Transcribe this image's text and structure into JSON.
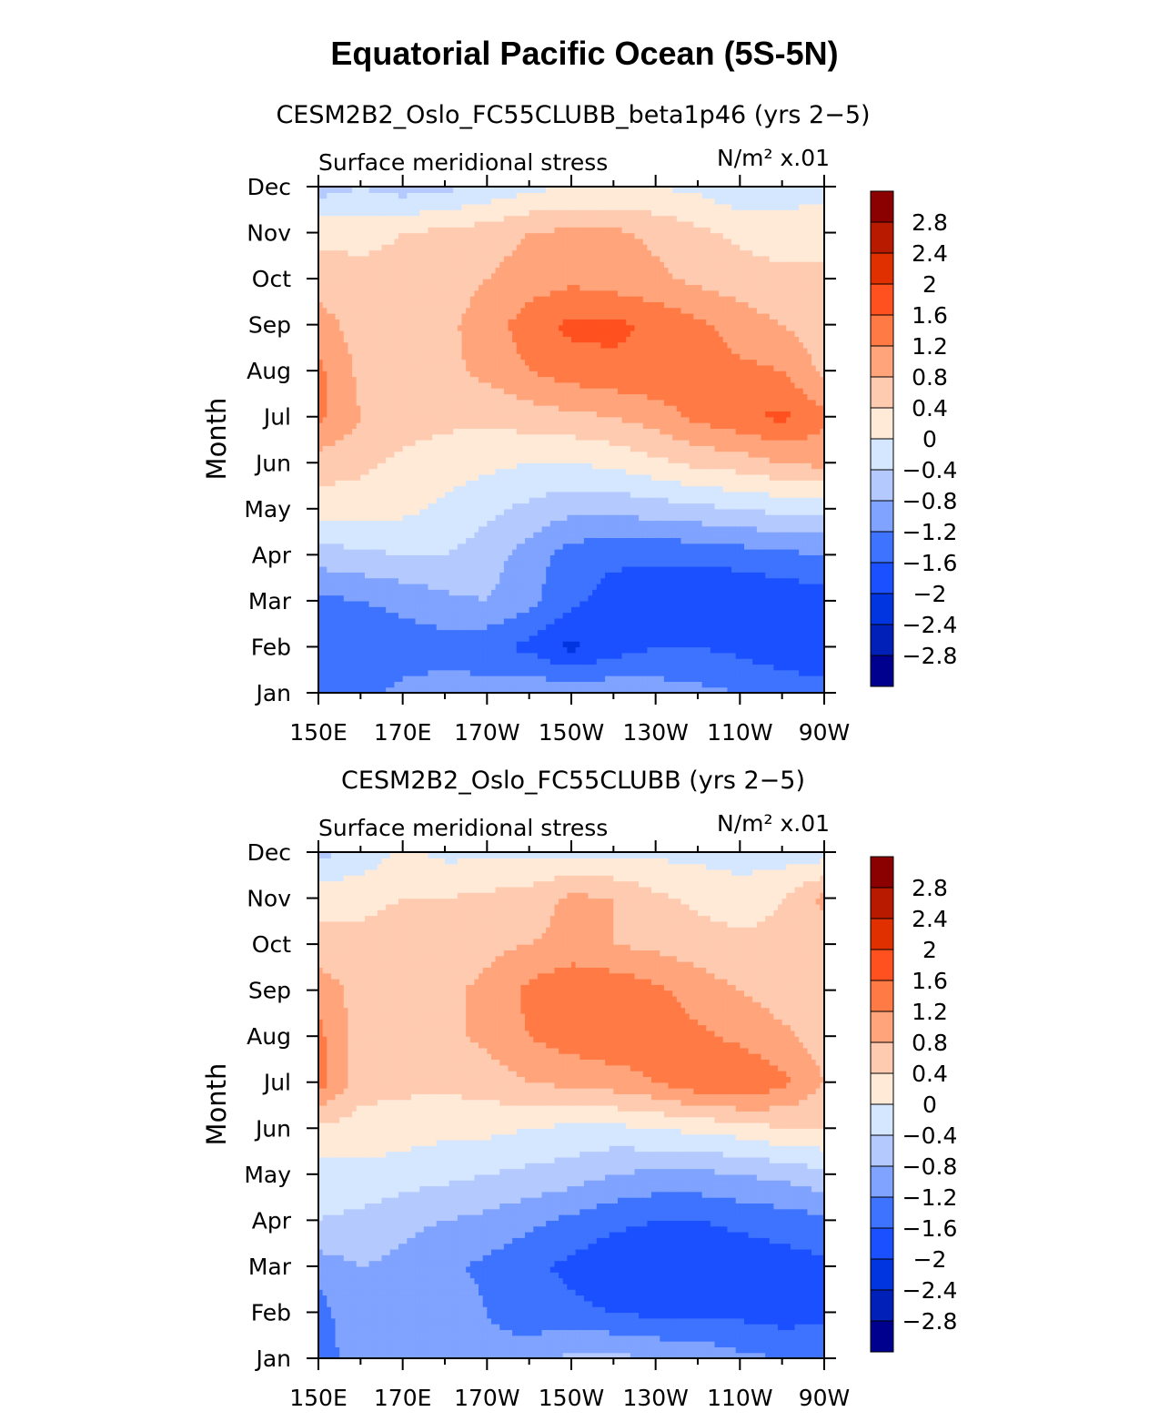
{
  "title": "Equatorial Pacific Ocean (5S-5N)",
  "chart_data": [
    {
      "type": "heatmap",
      "subtitle": "CESM2B2_Oslo_FC55CLUBB_beta1p46 (yrs 2−5)",
      "variable": "Surface meridional stress",
      "units": "N/m² x.01",
      "ylabel": "Month",
      "x": [
        150,
        160,
        170,
        180,
        190,
        200,
        210,
        220,
        230,
        240,
        250,
        260,
        270
      ],
      "x_tick_labels": [
        "150E",
        "170E",
        "170W",
        "150W",
        "130W",
        "110W",
        "90W"
      ],
      "y": [
        "Jan",
        "Feb",
        "Mar",
        "Apr",
        "May",
        "Jun",
        "Jul",
        "Aug",
        "Sep",
        "Oct",
        "Nov",
        "Dec"
      ],
      "contour_levels": [
        -2.8,
        -2.4,
        -2,
        -1.6,
        -1.2,
        -0.8,
        -0.4,
        0,
        0.4,
        0.8,
        1.2,
        1.6,
        2,
        2.4,
        2.8
      ],
      "colorbar_labels": [
        "2.8",
        "2.4",
        "2",
        "1.6",
        "1.2",
        "0.8",
        "0.4",
        "0",
        "−0.4",
        "−0.8",
        "−1.2",
        "−1.6",
        "−2",
        "−2.4",
        "−2.8"
      ],
      "values": [
        [
          -1.5,
          -1.3,
          -1.1,
          -1.0,
          -1.0,
          -0.9,
          -0.9,
          -0.9,
          -1.0,
          -1.1,
          -1.2,
          -1.3,
          -1.4
        ],
        [
          -1.6,
          -1.5,
          -1.4,
          -1.4,
          -1.5,
          -1.7,
          -2.1,
          -1.8,
          -1.6,
          -1.6,
          -1.7,
          -1.9,
          -2.0
        ],
        [
          -1.3,
          -1.2,
          -1.1,
          -0.9,
          -0.8,
          -1.1,
          -1.5,
          -1.8,
          -1.9,
          -2.0,
          -2.0,
          -1.9,
          -1.8
        ],
        [
          -0.6,
          -0.5,
          -0.4,
          -0.4,
          -0.6,
          -1.0,
          -1.4,
          -1.5,
          -1.5,
          -1.5,
          -1.4,
          -1.3,
          -1.2
        ],
        [
          0.2,
          0.2,
          0.1,
          -0.1,
          -0.3,
          -0.5,
          -0.7,
          -0.7,
          -0.6,
          -0.5,
          -0.4,
          -0.3,
          -0.3
        ],
        [
          0.6,
          0.5,
          0.3,
          0.2,
          0.1,
          0.0,
          0.0,
          0.1,
          0.3,
          0.5,
          0.6,
          0.8,
          0.9
        ],
        [
          1.3,
          0.8,
          0.6,
          0.5,
          0.5,
          0.6,
          0.7,
          0.8,
          1.0,
          1.3,
          1.5,
          1.7,
          1.3
        ],
        [
          1.3,
          0.7,
          0.6,
          0.7,
          0.9,
          1.2,
          1.4,
          1.5,
          1.5,
          1.4,
          1.3,
          1.2,
          0.7
        ],
        [
          1.0,
          0.6,
          0.6,
          0.7,
          1.0,
          1.4,
          1.7,
          1.7,
          1.5,
          1.3,
          1.0,
          0.8,
          0.6
        ],
        [
          0.6,
          0.5,
          0.5,
          0.6,
          0.8,
          1.0,
          1.1,
          1.0,
          0.9,
          0.7,
          0.6,
          0.5,
          0.5
        ],
        [
          0.3,
          0.3,
          0.4,
          0.5,
          0.6,
          0.8,
          0.9,
          0.9,
          0.7,
          0.5,
          0.3,
          0.2,
          0.2
        ],
        [
          -0.6,
          -0.4,
          -0.6,
          -0.5,
          -0.3,
          -0.1,
          0.0,
          0.0,
          0.0,
          -0.1,
          -0.3,
          -0.2,
          -0.1
        ]
      ]
    },
    {
      "type": "heatmap",
      "subtitle": "CESM2B2_Oslo_FC55CLUBB (yrs 2−5)",
      "variable": "Surface meridional stress",
      "units": "N/m² x.01",
      "ylabel": "Month",
      "x": [
        150,
        160,
        170,
        180,
        190,
        200,
        210,
        220,
        230,
        240,
        250,
        260,
        270
      ],
      "x_tick_labels": [
        "150E",
        "170E",
        "170W",
        "150W",
        "130W",
        "110W",
        "90W"
      ],
      "y": [
        "Jan",
        "Feb",
        "Mar",
        "Apr",
        "May",
        "Jun",
        "Jul",
        "Aug",
        "Sep",
        "Oct",
        "Nov",
        "Dec"
      ],
      "contour_levels": [
        -2.8,
        -2.4,
        -2,
        -1.6,
        -1.2,
        -0.8,
        -0.4,
        0,
        0.4,
        0.8,
        1.2,
        1.6,
        2,
        2.4,
        2.8
      ],
      "colorbar_labels": [
        "2.8",
        "2.4",
        "2",
        "1.6",
        "1.2",
        "0.8",
        "0.4",
        "0",
        "−0.4",
        "−0.8",
        "−1.2",
        "−1.6",
        "−2",
        "−2.4",
        "−2.8"
      ],
      "values": [
        [
          -1.5,
          -0.9,
          -0.9,
          -1.0,
          -1.1,
          -1.0,
          -0.7,
          -0.7,
          -0.8,
          -0.9,
          -1.1,
          -1.2,
          -1.3
        ],
        [
          -1.4,
          -0.8,
          -0.8,
          -0.9,
          -1.2,
          -1.4,
          -1.5,
          -1.6,
          -1.7,
          -1.7,
          -1.7,
          -1.8,
          -1.7
        ],
        [
          -1.0,
          -0.8,
          -0.9,
          -1.1,
          -1.3,
          -1.5,
          -1.7,
          -1.9,
          -2.0,
          -2.0,
          -1.9,
          -1.8,
          -1.7
        ],
        [
          -0.4,
          -0.5,
          -0.7,
          -0.8,
          -0.9,
          -1.1,
          -1.3,
          -1.5,
          -1.6,
          -1.6,
          -1.5,
          -1.4,
          -1.3
        ],
        [
          -0.2,
          -0.1,
          -0.2,
          -0.3,
          -0.4,
          -0.5,
          -0.6,
          -0.8,
          -0.9,
          -0.9,
          -0.8,
          -0.7,
          -0.5
        ],
        [
          0.3,
          0.2,
          0.2,
          0.1,
          0.1,
          0.0,
          -0.1,
          -0.1,
          0.0,
          0.1,
          0.2,
          0.4,
          0.4
        ],
        [
          1.4,
          0.6,
          0.5,
          0.5,
          0.6,
          0.8,
          0.9,
          1.0,
          1.2,
          1.5,
          1.6,
          1.3,
          0.8
        ],
        [
          1.3,
          0.6,
          0.6,
          0.7,
          0.9,
          1.2,
          1.4,
          1.5,
          1.4,
          1.3,
          1.1,
          0.9,
          0.6
        ],
        [
          1.1,
          0.6,
          0.6,
          0.7,
          0.9,
          1.3,
          1.6,
          1.5,
          1.3,
          1.0,
          0.8,
          0.6,
          0.5
        ],
        [
          0.5,
          0.5,
          0.6,
          0.6,
          0.7,
          0.8,
          0.9,
          0.8,
          0.7,
          0.6,
          0.5,
          0.5,
          0.5
        ],
        [
          0.3,
          0.3,
          0.4,
          0.4,
          0.5,
          0.6,
          0.9,
          0.8,
          0.5,
          0.3,
          0.2,
          0.4,
          0.9
        ],
        [
          -0.5,
          -0.3,
          0.1,
          -0.1,
          -0.1,
          -0.1,
          -0.1,
          -0.1,
          -0.1,
          -0.1,
          -0.2,
          -0.2,
          -0.2
        ]
      ]
    }
  ],
  "colors": {
    "palette": [
      "#00008f",
      "#0020b8",
      "#0035e0",
      "#1a50ff",
      "#3d73ff",
      "#7fa3ff",
      "#b4caff",
      "#d5e7ff",
      "#ffead8",
      "#ffcbb0",
      "#ffa47b",
      "#ff7a45",
      "#ff501f",
      "#e03000",
      "#b81a00",
      "#8b0000"
    ]
  }
}
